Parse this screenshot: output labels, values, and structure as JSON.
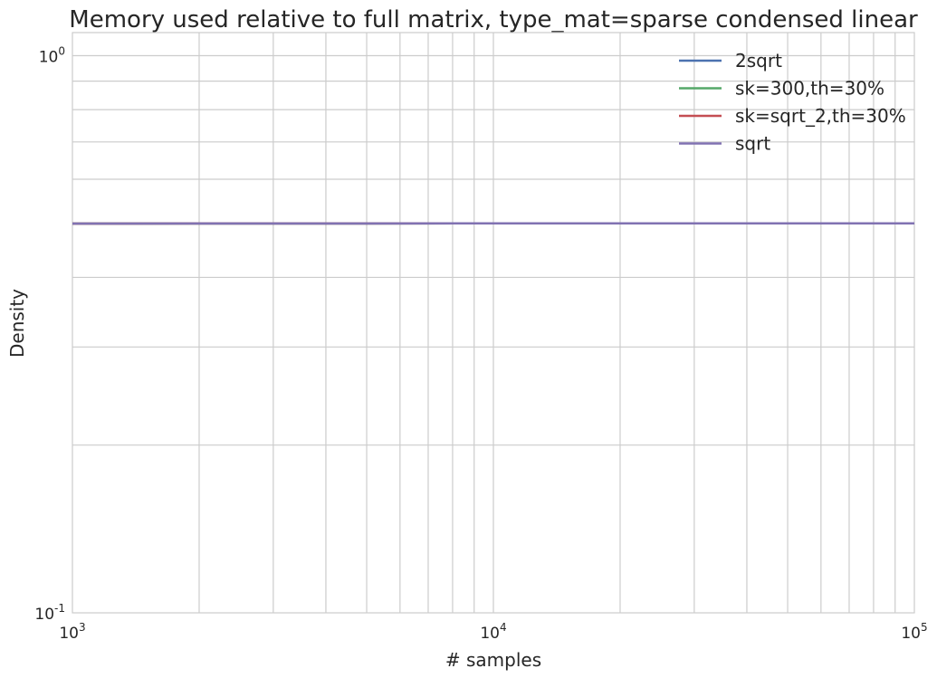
{
  "chart_data": {
    "type": "line",
    "title": "Memory used relative to full matrix, type_mat=sparse condensed linear",
    "xlabel": "# samples",
    "ylabel": "Density",
    "xscale": "log",
    "yscale": "log",
    "xlim": [
      1000,
      100000
    ],
    "ylim": [
      0.1,
      1.1
    ],
    "grid": true,
    "legend_position": "top-right",
    "x_ticks": [
      {
        "value": 1000,
        "base": "10",
        "exp": "3"
      },
      {
        "value": 10000,
        "base": "10",
        "exp": "4"
      },
      {
        "value": 100000,
        "base": "10",
        "exp": "5"
      }
    ],
    "y_ticks": [
      {
        "value": 0.1,
        "base": "10",
        "exp": "-1"
      },
      {
        "value": 1,
        "base": "10",
        "exp": "0"
      }
    ],
    "series": [
      {
        "name": "2sqrt",
        "color": "#4c72b0",
        "x": [
          1000,
          2000,
          5000,
          10000,
          20000,
          50000,
          100000
        ],
        "y": [
          0.4995,
          0.4998,
          0.4999,
          0.49995,
          0.49998,
          0.49999,
          0.499995
        ]
      },
      {
        "name": "sk=300,th=30%",
        "color": "#55a868",
        "x": [
          1000,
          2000,
          5000,
          10000,
          20000,
          50000,
          100000
        ],
        "y": [
          0.4995,
          0.4998,
          0.4999,
          0.49995,
          0.49998,
          0.49999,
          0.499995
        ]
      },
      {
        "name": "sk=sqrt_2,th=30%",
        "color": "#c44e52",
        "x": [
          1000,
          2000,
          5000,
          10000,
          20000,
          50000,
          100000
        ],
        "y": [
          0.4995,
          0.4998,
          0.4999,
          0.49995,
          0.49998,
          0.49999,
          0.499995
        ]
      },
      {
        "name": "sqrt",
        "color": "#8172b2",
        "x": [
          1000,
          2000,
          5000,
          10000,
          20000,
          50000,
          100000
        ],
        "y": [
          0.4995,
          0.4998,
          0.4999,
          0.49995,
          0.49998,
          0.49999,
          0.499995
        ]
      }
    ]
  }
}
